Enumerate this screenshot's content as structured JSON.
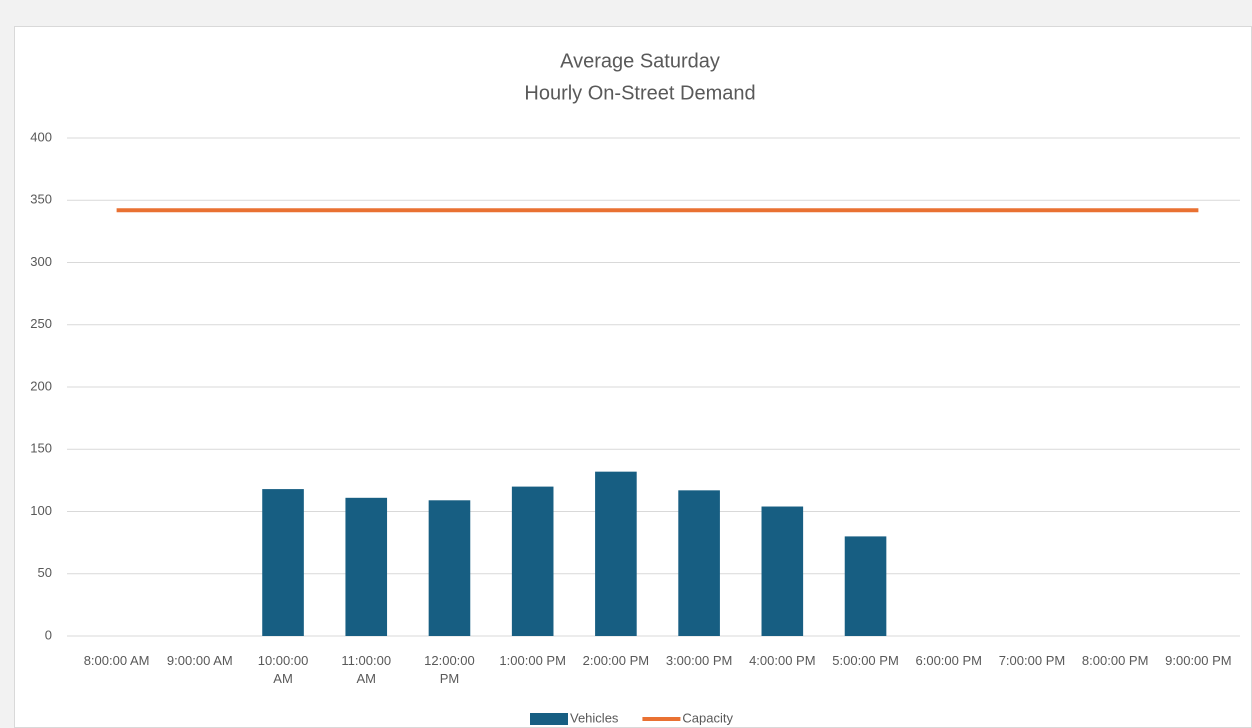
{
  "chart_data": {
    "type": "bar",
    "title": "Average Saturday",
    "subtitle": "Hourly On-Street Demand",
    "categories": [
      "8:00:00 AM",
      "9:00:00 AM",
      "10:00:00 AM",
      "11:00:00 AM",
      "12:00:00 PM",
      "1:00:00 PM",
      "2:00:00 PM",
      "3:00:00 PM",
      "4:00:00 PM",
      "5:00:00 PM",
      "6:00:00 PM",
      "7:00:00 PM",
      "8:00:00 PM",
      "9:00:00 PM"
    ],
    "series": [
      {
        "name": "Vehicles",
        "type": "bar",
        "color": "#175e82",
        "values": [
          null,
          null,
          118,
          111,
          109,
          120,
          132,
          117,
          104,
          80,
          null,
          null,
          null,
          null
        ]
      },
      {
        "name": "Capacity",
        "type": "line",
        "color": "#e97132",
        "values": [
          342,
          342,
          342,
          342,
          342,
          342,
          342,
          342,
          342,
          342,
          342,
          342,
          342,
          342
        ]
      }
    ],
    "ylim": [
      0,
      400
    ],
    "yticks": [
      0,
      50,
      100,
      150,
      200,
      250,
      300,
      350,
      400
    ],
    "grid": true,
    "legend": "bottom"
  }
}
